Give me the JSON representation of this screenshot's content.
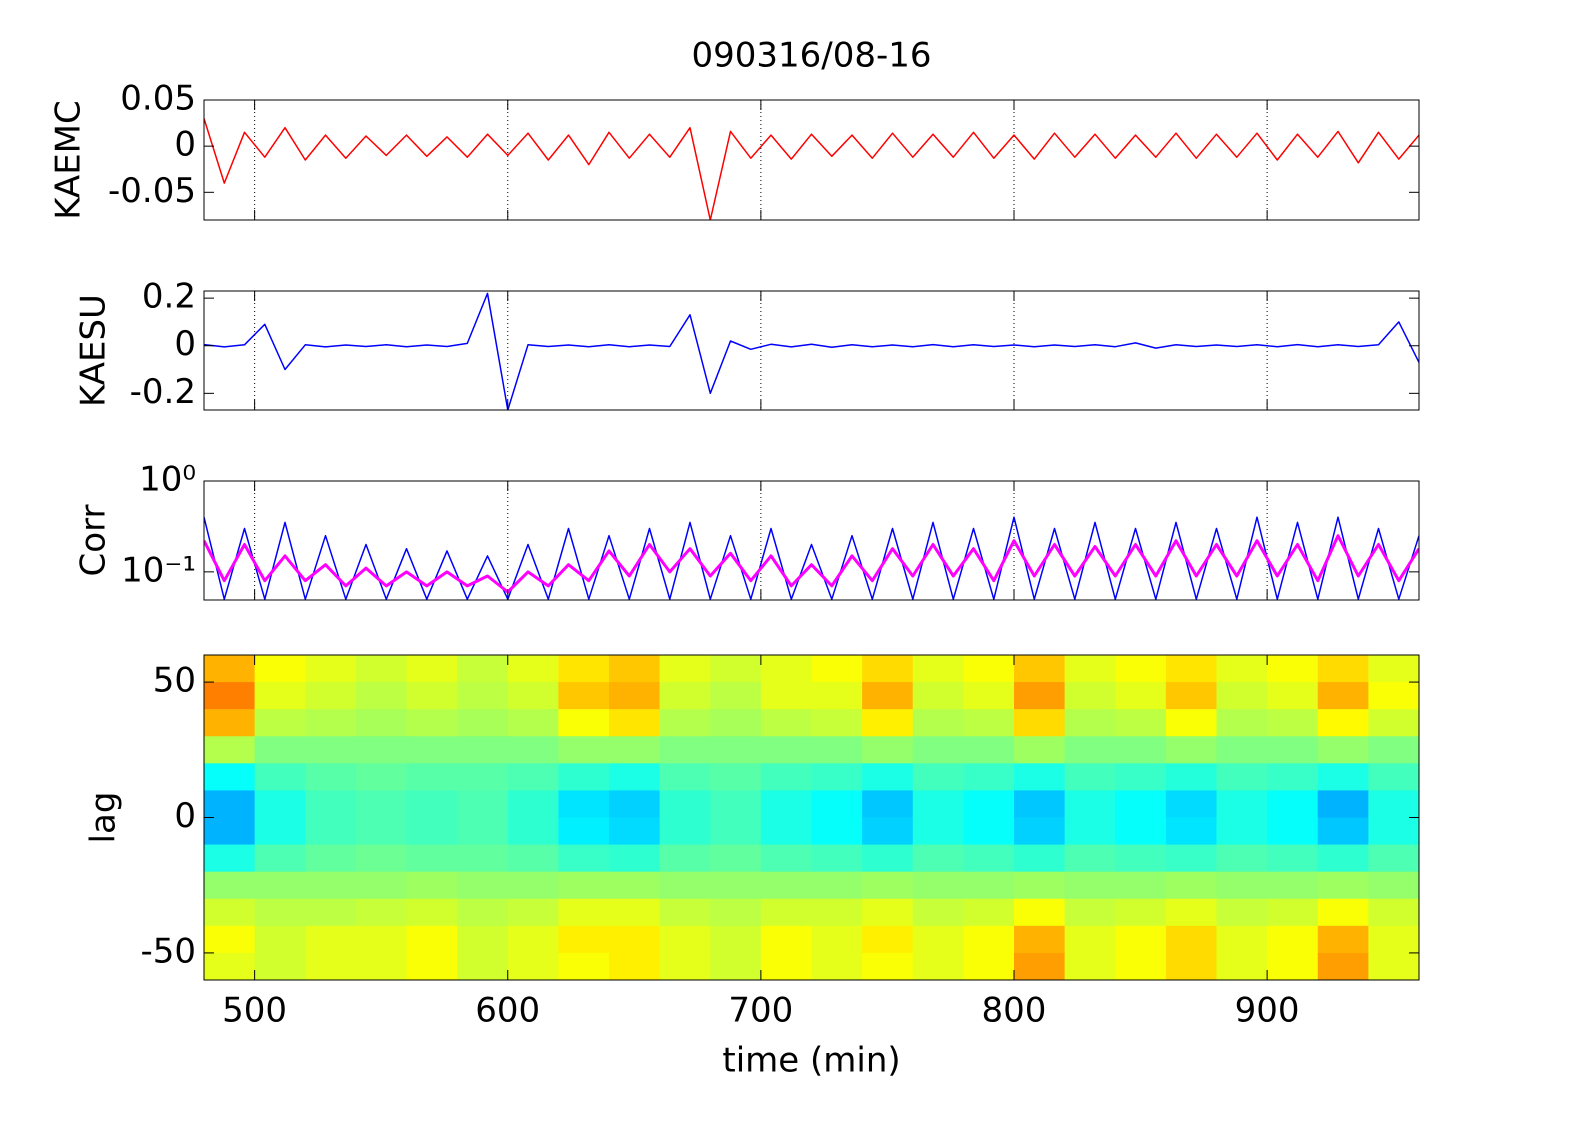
{
  "chart_data": [
    {
      "type": "line",
      "title": "090316/08-16",
      "ylabel": "KAEMC",
      "xlim": [
        480,
        960
      ],
      "xticks": [
        500,
        600,
        700,
        800,
        900
      ],
      "ylim": [
        -0.08,
        0.05
      ],
      "yticks": [
        -0.05,
        0,
        0.05
      ],
      "grid": true,
      "x": [
        480,
        488,
        496,
        504,
        512,
        520,
        528,
        536,
        544,
        552,
        560,
        568,
        576,
        584,
        592,
        600,
        608,
        616,
        624,
        632,
        640,
        648,
        656,
        664,
        672,
        680,
        688,
        696,
        704,
        712,
        720,
        728,
        736,
        744,
        752,
        760,
        768,
        776,
        784,
        792,
        800,
        808,
        816,
        824,
        832,
        840,
        848,
        856,
        864,
        872,
        880,
        888,
        896,
        904,
        912,
        920,
        928,
        936,
        944,
        952,
        960
      ],
      "series": [
        {
          "color": "#ff0000",
          "values": [
            0.03,
            -0.04,
            0.015,
            -0.012,
            0.02,
            -0.015,
            0.012,
            -0.013,
            0.011,
            -0.01,
            0.012,
            -0.011,
            0.01,
            -0.012,
            0.013,
            -0.01,
            0.014,
            -0.015,
            0.012,
            -0.02,
            0.015,
            -0.013,
            0.013,
            -0.012,
            0.02,
            -0.08,
            0.016,
            -0.013,
            0.012,
            -0.014,
            0.013,
            -0.011,
            0.012,
            -0.013,
            0.014,
            -0.012,
            0.013,
            -0.012,
            0.015,
            -0.013,
            0.012,
            -0.014,
            0.014,
            -0.012,
            0.013,
            -0.013,
            0.012,
            -0.012,
            0.014,
            -0.013,
            0.013,
            -0.012,
            0.014,
            -0.015,
            0.013,
            -0.012,
            0.016,
            -0.018,
            0.015,
            -0.014,
            0.012
          ]
        }
      ]
    },
    {
      "type": "line",
      "ylabel": "KAESU",
      "xlim": [
        480,
        960
      ],
      "xticks": [
        500,
        600,
        700,
        800,
        900
      ],
      "ylim": [
        -0.27,
        0.23
      ],
      "yticks": [
        -0.2,
        0,
        0.2
      ],
      "grid": true,
      "x": [
        480,
        488,
        496,
        504,
        512,
        520,
        528,
        536,
        544,
        552,
        560,
        568,
        576,
        584,
        592,
        600,
        608,
        616,
        624,
        632,
        640,
        648,
        656,
        664,
        672,
        680,
        688,
        696,
        704,
        712,
        720,
        728,
        736,
        744,
        752,
        760,
        768,
        776,
        784,
        792,
        800,
        808,
        816,
        824,
        832,
        840,
        848,
        856,
        864,
        872,
        880,
        888,
        896,
        904,
        912,
        920,
        928,
        936,
        944,
        952,
        960
      ],
      "series": [
        {
          "color": "#0000ff",
          "values": [
            0.005,
            -0.005,
            0.004,
            0.09,
            -0.1,
            0.004,
            -0.005,
            0.003,
            -0.003,
            0.004,
            -0.004,
            0.003,
            -0.003,
            0.01,
            0.22,
            -0.27,
            0.004,
            -0.003,
            0.003,
            -0.004,
            0.004,
            -0.004,
            0.003,
            -0.003,
            0.13,
            -0.2,
            0.02,
            -0.015,
            0.006,
            -0.005,
            0.006,
            -0.006,
            0.004,
            -0.004,
            0.003,
            -0.004,
            0.005,
            -0.004,
            0.004,
            -0.003,
            0.003,
            -0.004,
            0.003,
            -0.003,
            0.004,
            -0.004,
            0.012,
            -0.01,
            0.004,
            -0.003,
            0.003,
            -0.003,
            0.004,
            -0.004,
            0.005,
            -0.004,
            0.004,
            -0.003,
            0.004,
            0.1,
            -0.07
          ]
        }
      ]
    },
    {
      "type": "line",
      "ylabel": "Corr",
      "log_y": true,
      "xlim": [
        480,
        960
      ],
      "xticks": [
        500,
        600,
        700,
        800,
        900
      ],
      "ylim": [
        0.049,
        1
      ],
      "yticks": [
        {
          "value": 0.1,
          "label": "10⁻¹"
        },
        {
          "value": 1,
          "label": "10⁰"
        }
      ],
      "grid": true,
      "x": [
        480,
        488,
        496,
        504,
        512,
        520,
        528,
        536,
        544,
        552,
        560,
        568,
        576,
        584,
        592,
        600,
        608,
        616,
        624,
        632,
        640,
        648,
        656,
        664,
        672,
        680,
        688,
        696,
        704,
        712,
        720,
        728,
        736,
        744,
        752,
        760,
        768,
        776,
        784,
        792,
        800,
        808,
        816,
        824,
        832,
        840,
        848,
        856,
        864,
        872,
        880,
        888,
        896,
        904,
        912,
        920,
        928,
        936,
        944,
        952,
        960
      ],
      "series": [
        {
          "color": "#0000ff",
          "values": [
            0.4,
            0.05,
            0.3,
            0.05,
            0.35,
            0.05,
            0.25,
            0.05,
            0.2,
            0.05,
            0.18,
            0.05,
            0.17,
            0.05,
            0.15,
            0.05,
            0.2,
            0.05,
            0.3,
            0.05,
            0.25,
            0.05,
            0.3,
            0.05,
            0.35,
            0.05,
            0.25,
            0.05,
            0.3,
            0.05,
            0.2,
            0.05,
            0.25,
            0.05,
            0.3,
            0.05,
            0.35,
            0.05,
            0.3,
            0.05,
            0.4,
            0.05,
            0.3,
            0.05,
            0.35,
            0.05,
            0.3,
            0.05,
            0.35,
            0.05,
            0.3,
            0.05,
            0.4,
            0.05,
            0.35,
            0.05,
            0.4,
            0.05,
            0.3,
            0.05,
            0.25
          ]
        },
        {
          "color": "#ff00ff",
          "values": [
            0.22,
            0.08,
            0.2,
            0.08,
            0.15,
            0.08,
            0.12,
            0.07,
            0.11,
            0.07,
            0.1,
            0.07,
            0.1,
            0.07,
            0.09,
            0.06,
            0.1,
            0.07,
            0.12,
            0.08,
            0.17,
            0.09,
            0.2,
            0.1,
            0.18,
            0.09,
            0.16,
            0.08,
            0.15,
            0.07,
            0.12,
            0.07,
            0.15,
            0.08,
            0.18,
            0.09,
            0.2,
            0.09,
            0.18,
            0.08,
            0.22,
            0.09,
            0.2,
            0.09,
            0.19,
            0.09,
            0.2,
            0.09,
            0.22,
            0.09,
            0.2,
            0.09,
            0.22,
            0.09,
            0.2,
            0.08,
            0.25,
            0.09,
            0.2,
            0.08,
            0.18
          ]
        }
      ]
    },
    {
      "type": "heatmap",
      "ylabel": "lag",
      "xlabel": "time (min)",
      "colormap": "jet",
      "zlim": [
        0,
        1
      ],
      "xlim": [
        480,
        960
      ],
      "xticks": [
        500,
        600,
        700,
        800,
        900
      ],
      "ylim": [
        -60,
        60
      ],
      "yticks": [
        -50,
        0,
        50
      ],
      "grid": false,
      "z": [
        [
          0.7,
          0.62,
          0.6,
          0.58,
          0.6,
          0.57,
          0.6,
          0.65,
          0.68,
          0.6,
          0.58,
          0.6,
          0.62,
          0.66,
          0.6,
          0.62,
          0.68,
          0.6,
          0.62,
          0.65,
          0.6,
          0.62,
          0.66,
          0.6
        ],
        [
          0.75,
          0.6,
          0.58,
          0.56,
          0.58,
          0.56,
          0.58,
          0.68,
          0.7,
          0.58,
          0.56,
          0.6,
          0.6,
          0.7,
          0.58,
          0.6,
          0.72,
          0.58,
          0.6,
          0.68,
          0.58,
          0.6,
          0.7,
          0.62
        ],
        [
          0.7,
          0.56,
          0.55,
          0.54,
          0.55,
          0.54,
          0.55,
          0.62,
          0.65,
          0.55,
          0.54,
          0.56,
          0.57,
          0.64,
          0.55,
          0.56,
          0.66,
          0.55,
          0.56,
          0.62,
          0.55,
          0.56,
          0.63,
          0.58
        ],
        [
          0.55,
          0.5,
          0.5,
          0.5,
          0.5,
          0.5,
          0.5,
          0.52,
          0.52,
          0.5,
          0.5,
          0.5,
          0.5,
          0.52,
          0.5,
          0.5,
          0.53,
          0.5,
          0.5,
          0.52,
          0.5,
          0.5,
          0.52,
          0.5
        ],
        [
          0.38,
          0.44,
          0.46,
          0.47,
          0.46,
          0.46,
          0.45,
          0.42,
          0.4,
          0.45,
          0.46,
          0.44,
          0.43,
          0.4,
          0.44,
          0.43,
          0.4,
          0.44,
          0.43,
          0.41,
          0.44,
          0.43,
          0.4,
          0.44
        ],
        [
          0.3,
          0.4,
          0.44,
          0.45,
          0.44,
          0.45,
          0.42,
          0.35,
          0.33,
          0.42,
          0.44,
          0.4,
          0.38,
          0.32,
          0.4,
          0.38,
          0.32,
          0.4,
          0.38,
          0.34,
          0.4,
          0.38,
          0.3,
          0.4
        ],
        [
          0.3,
          0.4,
          0.44,
          0.45,
          0.44,
          0.45,
          0.42,
          0.36,
          0.34,
          0.42,
          0.44,
          0.4,
          0.38,
          0.33,
          0.4,
          0.38,
          0.33,
          0.4,
          0.38,
          0.35,
          0.4,
          0.38,
          0.32,
          0.4
        ],
        [
          0.4,
          0.45,
          0.47,
          0.48,
          0.47,
          0.47,
          0.46,
          0.43,
          0.42,
          0.46,
          0.47,
          0.45,
          0.44,
          0.42,
          0.45,
          0.44,
          0.42,
          0.45,
          0.44,
          0.43,
          0.45,
          0.44,
          0.42,
          0.45
        ],
        [
          0.52,
          0.52,
          0.52,
          0.52,
          0.53,
          0.52,
          0.52,
          0.53,
          0.53,
          0.52,
          0.52,
          0.52,
          0.52,
          0.53,
          0.52,
          0.52,
          0.53,
          0.52,
          0.52,
          0.53,
          0.52,
          0.52,
          0.53,
          0.52
        ],
        [
          0.58,
          0.56,
          0.56,
          0.57,
          0.58,
          0.56,
          0.57,
          0.6,
          0.6,
          0.57,
          0.56,
          0.58,
          0.58,
          0.6,
          0.57,
          0.58,
          0.62,
          0.57,
          0.58,
          0.6,
          0.57,
          0.58,
          0.62,
          0.58
        ],
        [
          0.62,
          0.58,
          0.6,
          0.6,
          0.62,
          0.58,
          0.6,
          0.64,
          0.64,
          0.6,
          0.58,
          0.62,
          0.6,
          0.64,
          0.6,
          0.62,
          0.7,
          0.6,
          0.62,
          0.66,
          0.6,
          0.62,
          0.7,
          0.6
        ],
        [
          0.6,
          0.58,
          0.6,
          0.6,
          0.62,
          0.58,
          0.6,
          0.62,
          0.64,
          0.6,
          0.58,
          0.62,
          0.6,
          0.62,
          0.6,
          0.62,
          0.72,
          0.6,
          0.62,
          0.66,
          0.6,
          0.62,
          0.72,
          0.6
        ]
      ]
    }
  ]
}
